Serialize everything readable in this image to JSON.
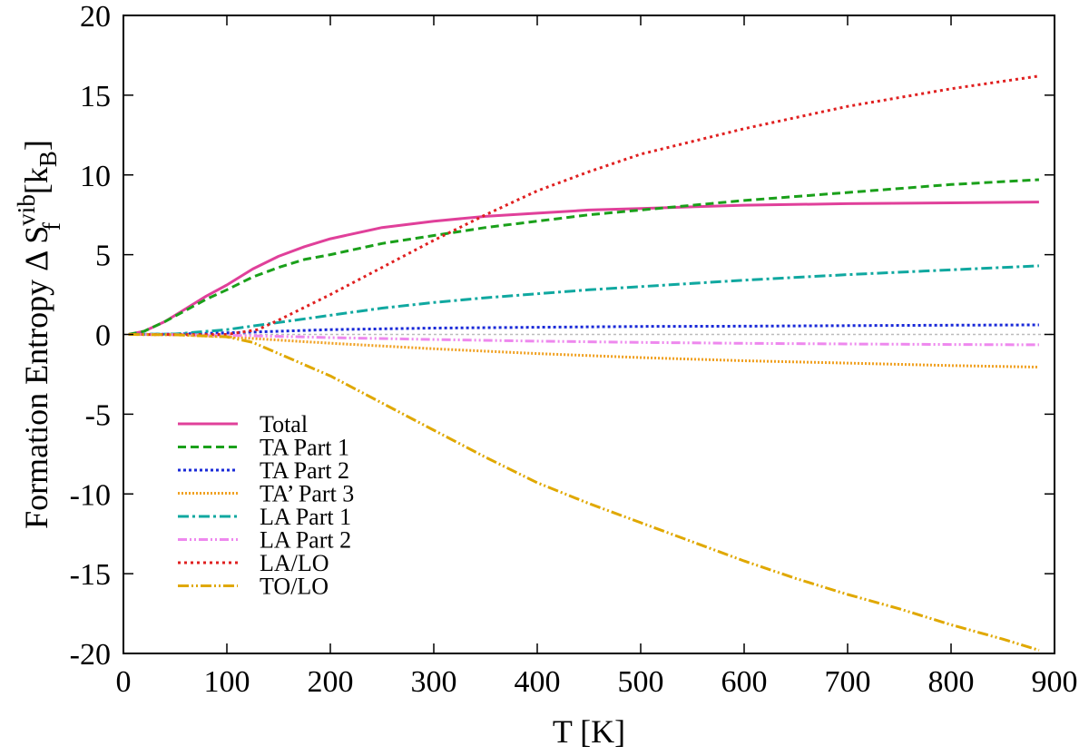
{
  "chart_data": {
    "type": "line",
    "xlabel": "T [K]",
    "ylabel": {
      "main": "Formation Entropy Δ S",
      "sup": "vib",
      "sub": "f",
      "unit_open": " [k",
      "unit_sub": "B",
      "unit_close": "]"
    },
    "xlim": [
      0,
      900
    ],
    "ylim": [
      -20,
      20
    ],
    "xticks": [
      0,
      100,
      200,
      300,
      400,
      500,
      600,
      700,
      800,
      900
    ],
    "yticks": [
      -20,
      -15,
      -10,
      -5,
      0,
      5,
      10,
      15,
      20
    ],
    "grid": false,
    "legend_position": "bottom-left",
    "zero_line": true,
    "series": [
      {
        "name": "Total",
        "color": "#e0409a",
        "dash": "",
        "width": 3,
        "x": [
          5,
          20,
          40,
          60,
          80,
          100,
          125,
          150,
          175,
          200,
          250,
          300,
          350,
          400,
          450,
          500,
          600,
          700,
          800,
          885
        ],
        "y": [
          0,
          0.2,
          0.8,
          1.6,
          2.4,
          3.1,
          4.1,
          4.9,
          5.5,
          6.0,
          6.7,
          7.1,
          7.4,
          7.6,
          7.8,
          7.9,
          8.1,
          8.2,
          8.25,
          8.3
        ]
      },
      {
        "name": "TA Part 1",
        "color": "#1aa01a",
        "dash": "9,5",
        "width": 3,
        "x": [
          5,
          20,
          40,
          60,
          80,
          100,
          125,
          150,
          175,
          200,
          250,
          300,
          350,
          400,
          450,
          500,
          600,
          700,
          800,
          885
        ],
        "y": [
          0,
          0.2,
          0.8,
          1.5,
          2.2,
          2.8,
          3.6,
          4.2,
          4.7,
          5.0,
          5.7,
          6.2,
          6.7,
          7.1,
          7.5,
          7.8,
          8.4,
          8.9,
          9.4,
          9.7
        ]
      },
      {
        "name": "TA Part 2",
        "color": "#1a2ad8",
        "dash": "3,3",
        "width": 3,
        "x": [
          5,
          50,
          100,
          150,
          200,
          300,
          400,
          500,
          600,
          700,
          800,
          885
        ],
        "y": [
          0,
          0.02,
          0.1,
          0.2,
          0.3,
          0.4,
          0.45,
          0.5,
          0.52,
          0.55,
          0.58,
          0.6
        ]
      },
      {
        "name": "TA’ Part 3",
        "color": "#f0a020",
        "dash": "2,2",
        "width": 3,
        "x": [
          5,
          50,
          100,
          150,
          200,
          300,
          400,
          500,
          600,
          700,
          800,
          885
        ],
        "y": [
          0,
          -0.02,
          -0.15,
          -0.35,
          -0.55,
          -0.9,
          -1.2,
          -1.45,
          -1.65,
          -1.8,
          -1.95,
          -2.05
        ]
      },
      {
        "name": "LA Part 1",
        "color": "#10a8a0",
        "dash": "12,4,3,4",
        "width": 3,
        "x": [
          5,
          50,
          100,
          150,
          200,
          250,
          300,
          350,
          400,
          450,
          500,
          600,
          700,
          800,
          885
        ],
        "y": [
          0,
          0.03,
          0.3,
          0.75,
          1.2,
          1.65,
          2.0,
          2.3,
          2.55,
          2.8,
          3.0,
          3.4,
          3.75,
          4.05,
          4.3
        ]
      },
      {
        "name": "LA Part 2",
        "color": "#ee88ee",
        "dash": "10,3,2,3,2,3",
        "width": 3,
        "x": [
          5,
          50,
          100,
          150,
          200,
          300,
          400,
          500,
          600,
          700,
          800,
          885
        ],
        "y": [
          0,
          -0.01,
          -0.05,
          -0.12,
          -0.2,
          -0.32,
          -0.42,
          -0.5,
          -0.56,
          -0.6,
          -0.63,
          -0.65
        ]
      },
      {
        "name": "LA/LO",
        "color": "#e02020",
        "dash": "3,4",
        "width": 3,
        "x": [
          5,
          50,
          100,
          130,
          150,
          200,
          250,
          300,
          350,
          400,
          450,
          500,
          600,
          700,
          800,
          885
        ],
        "y": [
          0,
          -0.01,
          0,
          0.3,
          0.9,
          2.5,
          4.2,
          5.9,
          7.5,
          9.0,
          10.2,
          11.3,
          12.9,
          14.3,
          15.4,
          16.2
        ]
      },
      {
        "name": "TO/LO",
        "color": "#e0a800",
        "dash": "12,3,2,3,2,3",
        "width": 3,
        "x": [
          5,
          50,
          100,
          125,
          150,
          200,
          250,
          300,
          350,
          400,
          450,
          500,
          550,
          600,
          650,
          700,
          750,
          800,
          850,
          885
        ],
        "y": [
          0,
          -0.02,
          -0.15,
          -0.5,
          -1.2,
          -2.6,
          -4.3,
          -6.0,
          -7.7,
          -9.3,
          -10.6,
          -11.8,
          -13.0,
          -14.2,
          -15.3,
          -16.3,
          -17.2,
          -18.2,
          -19.1,
          -19.8
        ]
      }
    ]
  }
}
